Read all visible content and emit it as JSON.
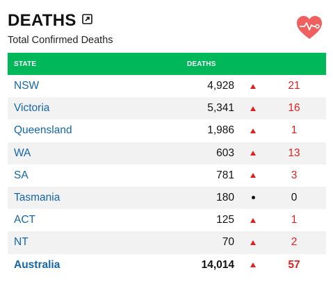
{
  "header": {
    "title": "DEATHS",
    "subtitle": "Total Confirmed Deaths",
    "expand_icon": "external-expand-icon",
    "heart_icon": "heart-pulse-icon",
    "heart_color": "#f16060"
  },
  "table": {
    "headers": {
      "state": "STATE",
      "deaths": "DEATHS"
    },
    "colors": {
      "header_bg": "#00b75a",
      "state_link": "#1565a8",
      "increase": "#e02020"
    },
    "rows": [
      {
        "state": "NSW",
        "deaths": "4,928",
        "trend": "up",
        "change": "21"
      },
      {
        "state": "Victoria",
        "deaths": "5,341",
        "trend": "up",
        "change": "16"
      },
      {
        "state": "Queensland",
        "deaths": "1,986",
        "trend": "up",
        "change": "1"
      },
      {
        "state": "WA",
        "deaths": "603",
        "trend": "up",
        "change": "13"
      },
      {
        "state": "SA",
        "deaths": "781",
        "trend": "up",
        "change": "3"
      },
      {
        "state": "Tasmania",
        "deaths": "180",
        "trend": "none",
        "change": "0"
      },
      {
        "state": "ACT",
        "deaths": "125",
        "trend": "up",
        "change": "1"
      },
      {
        "state": "NT",
        "deaths": "70",
        "trend": "up",
        "change": "2"
      },
      {
        "state": "Australia",
        "deaths": "14,014",
        "trend": "up",
        "change": "57",
        "total": true
      }
    ]
  }
}
